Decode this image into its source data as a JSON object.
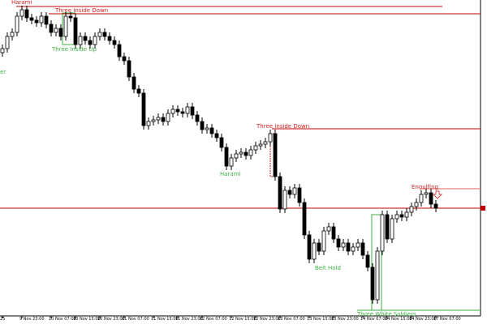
{
  "chart_data": {
    "type": "candlestick",
    "open": [
      325,
      330,
      345,
      350,
      370,
      378,
      368,
      365,
      362,
      370,
      360,
      350,
      355,
      345,
      370,
      368,
      335,
      345,
      340,
      335,
      345,
      350,
      345,
      340,
      335,
      320,
      315,
      295,
      280,
      275,
      235,
      240,
      242,
      245,
      240,
      250,
      255,
      252,
      250,
      258,
      248,
      240,
      230,
      232,
      225,
      220,
      208,
      185,
      195,
      200,
      202,
      198,
      205,
      210,
      212,
      215,
      225,
      172,
      132,
      155,
      150,
      158,
      140,
      100,
      70,
      90,
      80,
      105,
      110,
      95,
      85,
      90,
      80,
      85,
      90,
      75,
      60,
      20,
      80,
      125,
      95,
      120,
      125,
      122,
      128,
      135,
      140,
      150,
      152,
      138
    ],
    "high": [
      335,
      350,
      355,
      375,
      383,
      383,
      373,
      370,
      375,
      375,
      365,
      360,
      360,
      375,
      375,
      373,
      350,
      350,
      345,
      350,
      355,
      355,
      350,
      345,
      340,
      325,
      320,
      300,
      285,
      280,
      245,
      247,
      250,
      250,
      255,
      260,
      260,
      257,
      263,
      263,
      253,
      245,
      237,
      237,
      230,
      225,
      213,
      200,
      205,
      207,
      207,
      210,
      215,
      217,
      220,
      230,
      230,
      177,
      160,
      160,
      163,
      163,
      145,
      105,
      95,
      95,
      110,
      115,
      115,
      100,
      95,
      95,
      90,
      95,
      95,
      80,
      65,
      85,
      130,
      130,
      125,
      130,
      130,
      133,
      140,
      145,
      155,
      157,
      157,
      143
    ],
    "low": [
      320,
      325,
      340,
      345,
      365,
      363,
      360,
      357,
      357,
      355,
      345,
      345,
      340,
      340,
      363,
      330,
      330,
      335,
      330,
      330,
      340,
      340,
      335,
      330,
      315,
      310,
      290,
      275,
      270,
      230,
      230,
      235,
      237,
      235,
      235,
      245,
      247,
      245,
      245,
      243,
      235,
      225,
      225,
      220,
      215,
      203,
      180,
      180,
      190,
      195,
      193,
      193,
      200,
      205,
      207,
      210,
      167,
      127,
      127,
      145,
      145,
      135,
      95,
      65,
      65,
      75,
      75,
      100,
      90,
      80,
      80,
      75,
      75,
      80,
      70,
      55,
      15,
      15,
      75,
      90,
      90,
      115,
      117,
      117,
      123,
      130,
      135,
      145,
      133,
      128
    ],
    "close": [
      330,
      345,
      350,
      370,
      378,
      368,
      365,
      362,
      370,
      360,
      350,
      355,
      345,
      370,
      368,
      335,
      345,
      340,
      335,
      345,
      350,
      345,
      340,
      335,
      320,
      315,
      295,
      280,
      275,
      235,
      240,
      242,
      245,
      240,
      250,
      255,
      252,
      250,
      258,
      248,
      240,
      230,
      232,
      225,
      220,
      208,
      185,
      195,
      200,
      202,
      198,
      205,
      210,
      212,
      215,
      225,
      172,
      132,
      155,
      150,
      158,
      140,
      100,
      70,
      90,
      80,
      105,
      110,
      95,
      85,
      90,
      80,
      85,
      90,
      75,
      60,
      20,
      80,
      125,
      95,
      120,
      125,
      122,
      128,
      135,
      140,
      150,
      152,
      138,
      133
    ],
    "up_color": "#ffffff",
    "down_color": "#000000",
    "outline_color": "#000000",
    "ylim": [
      0,
      390
    ],
    "xticks": [
      {
        "value": 0,
        "label": "25"
      },
      {
        "value": 4,
        "label": "9 Nov 23:00"
      },
      {
        "value": 10,
        "label": "10 Nov 07:00"
      },
      {
        "value": 15,
        "label": "10 Nov 15:00"
      },
      {
        "value": 20,
        "label": "10 Nov 23:00"
      },
      {
        "value": 25,
        "label": "11 Nov 07:00"
      },
      {
        "value": 31,
        "label": "11 Nov 15:00"
      },
      {
        "value": 36,
        "label": "11 Nov 23:00"
      },
      {
        "value": 41,
        "label": "12 Nov 07:00"
      },
      {
        "value": 47,
        "label": "12 Nov 15:00"
      },
      {
        "value": 52,
        "label": "12 Nov 23:00"
      },
      {
        "value": 57,
        "label": "13 Nov 07:00"
      },
      {
        "value": 63,
        "label": "13 Nov 15:00"
      },
      {
        "value": 68,
        "label": "13 Nov 23:00"
      },
      {
        "value": 74,
        "label": "14 Nov 07:00"
      },
      {
        "value": 79,
        "label": "14 Nov 15:00"
      },
      {
        "value": 84,
        "label": "14 Nov 23:00"
      },
      {
        "value": 89,
        "label": "17 Nov 07:00"
      }
    ],
    "levels": [
      {
        "value": 382,
        "color": "#c00000"
      },
      {
        "value": 373,
        "color": "#c00000"
      },
      {
        "value": 231,
        "color": "#c00000"
      },
      {
        "value": 157,
        "color": "#e06060"
      },
      {
        "value": 133,
        "color": "#c00000"
      },
      {
        "value": 7,
        "color": "#3cb043"
      }
    ],
    "annotations": [
      {
        "text": "Harami",
        "color": "#d02020"
      },
      {
        "text": "Three Inside Down",
        "color": "#d02020"
      },
      {
        "text": "Three Inside Up",
        "color": "#3cb043"
      },
      {
        "text": "er",
        "color": "#3cb043"
      },
      {
        "text": "Three Inside Down",
        "color": "#d02020"
      },
      {
        "text": "Harami",
        "color": "#3cb043"
      },
      {
        "text": "Belt Hold",
        "color": "#3cb043"
      },
      {
        "text": "Engulfing",
        "color": "#d02020"
      },
      {
        "text": "Three White Soldiers",
        "color": "#3cb043"
      }
    ]
  }
}
